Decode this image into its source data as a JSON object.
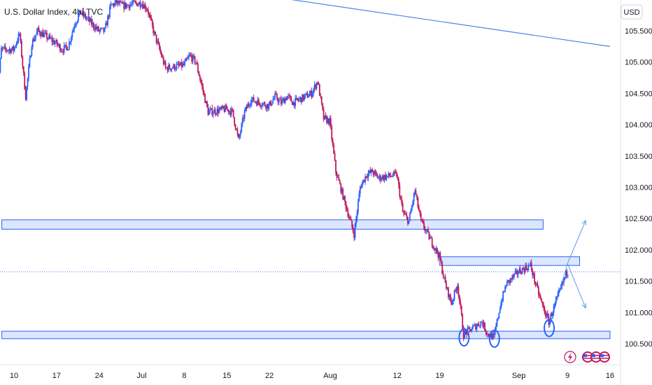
{
  "chart_data": {
    "type": "candlestick",
    "title": "U.S. Dollar Index, 4h, TVC",
    "currency": "USD",
    "y_ticks": [
      "105.500",
      "105.000",
      "104.500",
      "104.000",
      "103.500",
      "103.000",
      "102.500",
      "102.000",
      "101.500",
      "101.000",
      "100.500"
    ],
    "y_tick_values": [
      105.5,
      105.0,
      104.5,
      104.0,
      103.5,
      103.0,
      102.5,
      102.0,
      101.5,
      101.0,
      100.5
    ],
    "ylim": [
      100.35,
      106.05
    ],
    "x_ticks": [
      "10",
      "17",
      "24",
      "Jul",
      "8",
      "15",
      "22",
      "Aug",
      "12",
      "19",
      "Sep",
      "9",
      "16"
    ],
    "x_tick_dates": [
      "2024-06-10",
      "2024-06-17",
      "2024-06-24",
      "2024-07-01",
      "2024-07-08",
      "2024-07-15",
      "2024-07-22",
      "2024-08-01",
      "2024-08-12",
      "2024-08-19",
      "2024-09-01",
      "2024-09-09",
      "2024-09-16"
    ],
    "xlim": [
      "2024-06-10",
      "2024-09-16"
    ],
    "trend_line": {
      "start": [
        "2024-07-22",
        106.05
      ],
      "end": [
        "2024-09-16",
        105.25
      ]
    },
    "zones": [
      {
        "name": "resistance-zone-102.4",
        "start": "2024-06-08",
        "end": "2024-09-05",
        "y_low": 102.33,
        "y_high": 102.48
      },
      {
        "name": "resistance-zone-101.8",
        "start": "2024-08-19",
        "end": "2024-09-11",
        "y_low": 101.75,
        "y_high": 101.89
      },
      {
        "name": "support-zone-100.6",
        "start": "2024-06-08",
        "end": "2024-09-16",
        "y_low": 100.58,
        "y_high": 100.7
      }
    ],
    "current_price_line": 101.65,
    "projections": [
      {
        "start": [
          "2024-09-09",
          101.78
        ],
        "end": [
          "2024-09-12",
          102.47
        ]
      },
      {
        "start": [
          "2024-09-09",
          101.78
        ],
        "end": [
          "2024-09-12",
          101.07
        ]
      }
    ],
    "bottom_markers": [
      {
        "date": "2024-08-23",
        "y": 100.6
      },
      {
        "date": "2024-08-28",
        "y": 100.58
      },
      {
        "date": "2024-09-06",
        "y": 100.75
      }
    ],
    "price_path": [
      [
        "2024-06-07",
        104.1
      ],
      [
        "2024-06-08",
        105.2
      ],
      [
        "2024-06-10",
        105.2
      ],
      [
        "2024-06-11",
        105.45
      ],
      [
        "2024-06-12",
        104.45
      ],
      [
        "2024-06-13",
        105.3
      ],
      [
        "2024-06-14",
        105.5
      ],
      [
        "2024-06-17",
        105.3
      ],
      [
        "2024-06-18",
        105.2
      ],
      [
        "2024-06-19",
        105.25
      ],
      [
        "2024-06-20",
        105.6
      ],
      [
        "2024-06-21",
        105.8
      ],
      [
        "2024-06-24",
        105.5
      ],
      [
        "2024-06-25",
        105.5
      ],
      [
        "2024-06-26",
        105.9
      ],
      [
        "2024-06-27",
        105.95
      ],
      [
        "2024-06-28",
        105.9
      ],
      [
        "2024-07-01",
        105.95
      ],
      [
        "2024-07-02",
        105.85
      ],
      [
        "2024-07-03",
        105.5
      ],
      [
        "2024-07-04",
        105.2
      ],
      [
        "2024-07-05",
        104.9
      ],
      [
        "2024-07-08",
        104.95
      ],
      [
        "2024-07-09",
        105.1
      ],
      [
        "2024-07-10",
        105.0
      ],
      [
        "2024-07-11",
        104.6
      ],
      [
        "2024-07-12",
        104.2
      ],
      [
        "2024-07-15",
        104.25
      ],
      [
        "2024-07-16",
        104.2
      ],
      [
        "2024-07-17",
        103.75
      ],
      [
        "2024-07-18",
        104.2
      ],
      [
        "2024-07-19",
        104.4
      ],
      [
        "2024-07-22",
        104.3
      ],
      [
        "2024-07-23",
        104.45
      ],
      [
        "2024-07-24",
        104.35
      ],
      [
        "2024-07-25",
        104.45
      ],
      [
        "2024-07-26",
        104.35
      ],
      [
        "2024-07-29",
        104.5
      ],
      [
        "2024-07-30",
        104.7
      ],
      [
        "2024-07-31",
        104.1
      ],
      [
        "2024-08-01",
        104.05
      ],
      [
        "2024-08-02",
        103.25
      ],
      [
        "2024-08-05",
        102.25
      ],
      [
        "2024-08-06",
        103.0
      ],
      [
        "2024-08-07",
        103.2
      ],
      [
        "2024-08-08",
        103.25
      ],
      [
        "2024-08-09",
        103.15
      ],
      [
        "2024-08-12",
        103.2
      ],
      [
        "2024-08-13",
        102.6
      ],
      [
        "2024-08-14",
        102.45
      ],
      [
        "2024-08-15",
        102.95
      ],
      [
        "2024-08-16",
        102.45
      ],
      [
        "2024-08-19",
        101.9
      ],
      [
        "2024-08-20",
        101.45
      ],
      [
        "2024-08-21",
        101.15
      ],
      [
        "2024-08-22",
        101.45
      ],
      [
        "2024-08-23",
        100.65
      ],
      [
        "2024-08-26",
        100.85
      ],
      [
        "2024-08-27",
        100.65
      ],
      [
        "2024-08-28",
        100.6
      ],
      [
        "2024-08-29",
        101.1
      ],
      [
        "2024-08-30",
        101.45
      ],
      [
        "2024-09-01",
        101.65
      ],
      [
        "2024-09-02",
        101.7
      ],
      [
        "2024-09-03",
        101.75
      ],
      [
        "2024-09-04",
        101.4
      ],
      [
        "2024-09-05",
        101.1
      ],
      [
        "2024-09-06",
        100.85
      ],
      [
        "2024-09-09",
        101.65
      ]
    ],
    "colors": {
      "up": "#2962ff",
      "down": "#c2185b",
      "zone_fill": "#d6e2fb",
      "zone_border": "#2962ff",
      "line": "#4c86e8"
    }
  }
}
